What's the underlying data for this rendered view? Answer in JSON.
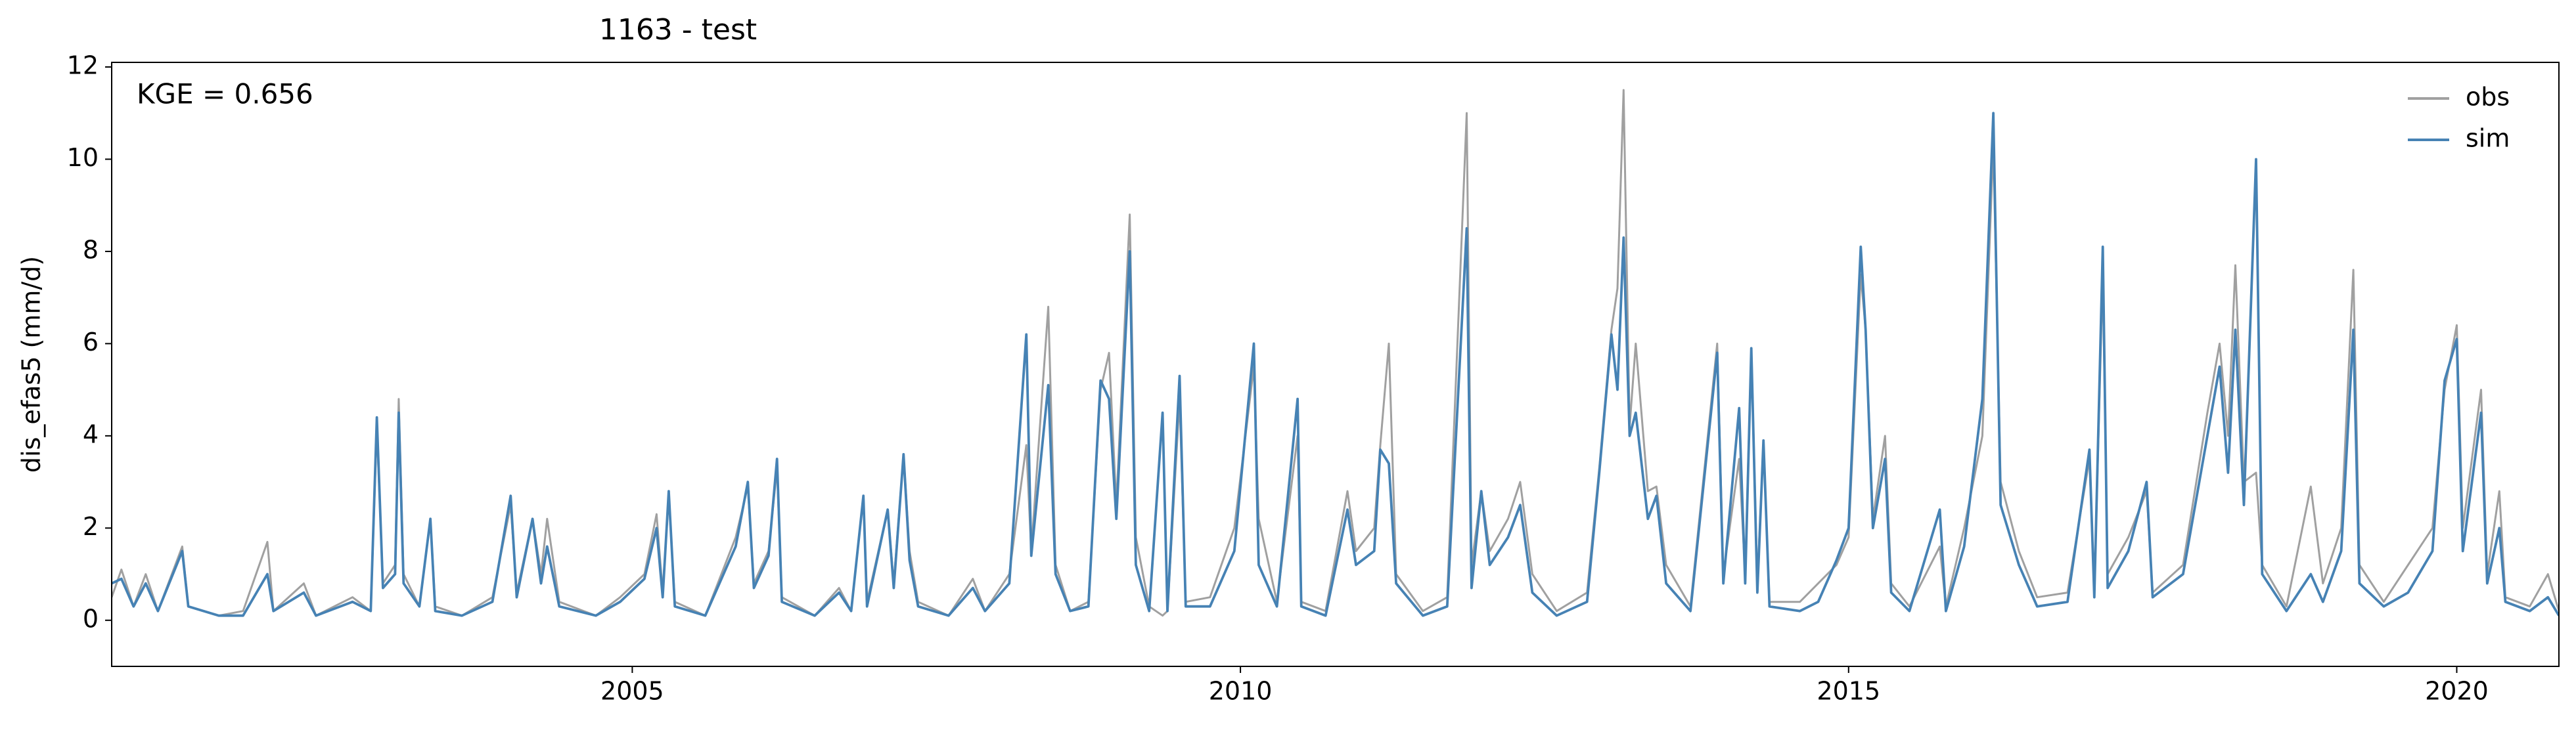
{
  "chart_data": {
    "type": "line",
    "title": "1163 - test",
    "ylabel": "dis_efas5 (mm/d)",
    "annotation": "KGE = 0.656",
    "legend_loc": "upper right",
    "grid": false,
    "xlim": [
      2000.72,
      2020.84
    ],
    "xticks": [
      2005,
      2010,
      2015,
      2020
    ],
    "ylim": [
      -1,
      12.1
    ],
    "yticks": [
      0,
      2,
      4,
      6,
      8,
      10,
      12
    ],
    "x": [
      2000.72,
      2000.8,
      2000.9,
      2001.0,
      2001.1,
      2001.3,
      2001.35,
      2001.6,
      2001.8,
      2002.0,
      2002.05,
      2002.3,
      2002.4,
      2002.7,
      2002.85,
      2002.9,
      2002.95,
      2003.05,
      2003.08,
      2003.12,
      2003.25,
      2003.34,
      2003.38,
      2003.6,
      2003.85,
      2004.0,
      2004.05,
      2004.18,
      2004.25,
      2004.3,
      2004.4,
      2004.7,
      2004.9,
      2005.1,
      2005.2,
      2005.25,
      2005.3,
      2005.35,
      2005.6,
      2005.85,
      2005.95,
      2006.0,
      2006.12,
      2006.19,
      2006.23,
      2006.5,
      2006.7,
      2006.8,
      2006.9,
      2006.93,
      2007.1,
      2007.15,
      2007.23,
      2007.28,
      2007.35,
      2007.6,
      2007.8,
      2007.9,
      2008.1,
      2008.24,
      2008.28,
      2008.42,
      2008.48,
      2008.6,
      2008.75,
      2008.85,
      2008.92,
      2008.98,
      2009.09,
      2009.14,
      2009.25,
      2009.36,
      2009.4,
      2009.5,
      2009.55,
      2009.75,
      2009.95,
      2010.11,
      2010.15,
      2010.3,
      2010.47,
      2010.5,
      2010.7,
      2010.88,
      2010.95,
      2011.1,
      2011.15,
      2011.22,
      2011.28,
      2011.5,
      2011.7,
      2011.86,
      2011.9,
      2011.98,
      2012.05,
      2012.2,
      2012.3,
      2012.4,
      2012.6,
      2012.85,
      2012.95,
      2013.05,
      2013.1,
      2013.15,
      2013.2,
      2013.25,
      2013.35,
      2013.42,
      2013.5,
      2013.7,
      2013.92,
      2013.97,
      2014.1,
      2014.15,
      2014.2,
      2014.25,
      2014.3,
      2014.35,
      2014.6,
      2014.75,
      2014.9,
      2015.0,
      2015.1,
      2015.14,
      2015.2,
      2015.3,
      2015.35,
      2015.5,
      2015.75,
      2015.8,
      2015.95,
      2016.1,
      2016.19,
      2016.25,
      2016.4,
      2016.55,
      2016.8,
      2016.98,
      2017.02,
      2017.09,
      2017.13,
      2017.3,
      2017.45,
      2017.5,
      2017.75,
      2017.95,
      2018.05,
      2018.12,
      2018.18,
      2018.25,
      2018.35,
      2018.4,
      2018.6,
      2018.8,
      2018.9,
      2019.05,
      2019.15,
      2019.2,
      2019.4,
      2019.6,
      2019.8,
      2019.9,
      2020.0,
      2020.05,
      2020.2,
      2020.25,
      2020.35,
      2020.4,
      2020.6,
      2020.75,
      2020.84
    ],
    "series": [
      {
        "name": "obs",
        "color": "#a0a0a0",
        "values": [
          0.5,
          1.1,
          0.3,
          1.0,
          0.2,
          1.6,
          0.3,
          0.1,
          0.2,
          1.7,
          0.2,
          0.8,
          0.1,
          0.5,
          0.2,
          4.2,
          0.8,
          1.2,
          4.8,
          1.0,
          0.3,
          2.2,
          0.3,
          0.1,
          0.5,
          2.5,
          0.6,
          2.2,
          1.0,
          2.2,
          0.4,
          0.1,
          0.5,
          1.0,
          2.3,
          0.6,
          2.7,
          0.4,
          0.1,
          1.8,
          2.9,
          0.8,
          1.5,
          3.3,
          0.5,
          0.1,
          0.7,
          0.2,
          2.7,
          0.4,
          2.4,
          0.8,
          3.6,
          1.5,
          0.4,
          0.1,
          0.9,
          0.2,
          1.0,
          3.8,
          1.5,
          6.8,
          1.2,
          0.2,
          0.4,
          5.0,
          5.8,
          2.5,
          8.8,
          1.8,
          0.3,
          0.1,
          0.2,
          4.8,
          0.4,
          0.5,
          2.0,
          5.5,
          2.2,
          0.4,
          4.0,
          0.4,
          0.2,
          2.8,
          1.5,
          2.0,
          3.8,
          6.0,
          1.0,
          0.2,
          0.5,
          11.0,
          1.2,
          2.8,
          1.5,
          2.2,
          3.0,
          1.0,
          0.2,
          0.6,
          3.3,
          6.3,
          7.2,
          11.5,
          4.2,
          6.0,
          2.8,
          2.9,
          1.2,
          0.3,
          6.0,
          1.0,
          3.5,
          1.0,
          5.9,
          0.8,
          3.8,
          0.4,
          0.4,
          0.8,
          1.2,
          1.8,
          7.5,
          6.3,
          2.2,
          4.0,
          0.8,
          0.3,
          1.6,
          0.3,
          2.0,
          4.0,
          10.3,
          3.0,
          1.5,
          0.5,
          0.6,
          3.5,
          0.6,
          7.5,
          1.0,
          1.8,
          2.8,
          0.6,
          1.2,
          4.5,
          6.0,
          4.0,
          7.7,
          3.0,
          3.2,
          1.2,
          0.3,
          2.9,
          0.8,
          2.0,
          7.6,
          1.2,
          0.4,
          1.2,
          2.0,
          5.0,
          6.4,
          2.0,
          5.0,
          1.0,
          2.8,
          0.5,
          0.3,
          1.0,
          0.2
        ]
      },
      {
        "name": "sim",
        "color": "#4682b4",
        "values": [
          0.8,
          0.9,
          0.3,
          0.8,
          0.2,
          1.5,
          0.3,
          0.1,
          0.1,
          1.0,
          0.2,
          0.6,
          0.1,
          0.4,
          0.2,
          4.4,
          0.7,
          1.0,
          4.5,
          0.8,
          0.3,
          2.2,
          0.2,
          0.1,
          0.4,
          2.7,
          0.5,
          2.2,
          0.8,
          1.6,
          0.3,
          0.1,
          0.4,
          0.9,
          2.0,
          0.5,
          2.8,
          0.3,
          0.1,
          1.6,
          3.0,
          0.7,
          1.4,
          3.5,
          0.4,
          0.1,
          0.6,
          0.2,
          2.7,
          0.3,
          2.4,
          0.7,
          3.6,
          1.3,
          0.3,
          0.1,
          0.7,
          0.2,
          0.8,
          6.2,
          1.4,
          5.1,
          1.0,
          0.2,
          0.3,
          5.2,
          4.8,
          2.2,
          8.0,
          1.2,
          0.2,
          4.5,
          0.2,
          5.3,
          0.3,
          0.3,
          1.5,
          6.0,
          1.2,
          0.3,
          4.8,
          0.3,
          0.1,
          2.4,
          1.2,
          1.5,
          3.7,
          3.4,
          0.8,
          0.1,
          0.3,
          8.5,
          0.7,
          2.8,
          1.2,
          1.8,
          2.5,
          0.6,
          0.1,
          0.4,
          3.2,
          6.2,
          5.0,
          8.3,
          4.0,
          4.5,
          2.2,
          2.7,
          0.8,
          0.2,
          5.8,
          0.8,
          4.6,
          0.8,
          5.9,
          0.6,
          3.9,
          0.3,
          0.2,
          0.4,
          1.3,
          2.0,
          8.1,
          6.3,
          2.0,
          3.5,
          0.6,
          0.2,
          2.4,
          0.2,
          1.6,
          4.8,
          11.0,
          2.5,
          1.2,
          0.3,
          0.4,
          3.7,
          0.5,
          8.1,
          0.7,
          1.5,
          3.0,
          0.5,
          1.0,
          4.0,
          5.5,
          3.2,
          6.3,
          2.5,
          10.0,
          1.0,
          0.2,
          1.0,
          0.4,
          1.5,
          6.3,
          0.8,
          0.3,
          0.6,
          1.5,
          5.2,
          6.1,
          1.5,
          4.5,
          0.8,
          2.0,
          0.4,
          0.2,
          0.5,
          0.1
        ]
      }
    ]
  }
}
